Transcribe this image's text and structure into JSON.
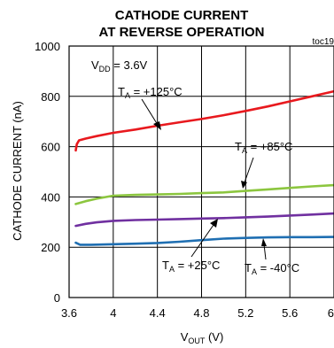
{
  "chart_data": {
    "type": "line",
    "title_line1": "CATHODE CURRENT",
    "title_line2": "AT REVERSE OPERATION",
    "figure_id": "toc19",
    "xlabel": {
      "main": "V",
      "sub": "OUT",
      "unit": " (V)"
    },
    "ylabel": "CATHODE CURRENT (nA)",
    "xlim": [
      3.6,
      6.0
    ],
    "ylim": [
      0,
      1000
    ],
    "x_ticks": [
      3.6,
      4.0,
      4.4,
      4.8,
      5.2,
      5.6,
      6.0
    ],
    "x_tick_labels": [
      "3.6",
      "4",
      "4.4",
      "4.8",
      "5.2",
      "5.6",
      "6"
    ],
    "y_ticks": [
      0,
      200,
      400,
      600,
      800,
      1000
    ],
    "y_tick_labels": [
      "0",
      "200",
      "400",
      "600",
      "800",
      "1000"
    ],
    "grid": true,
    "condition": {
      "main": "V",
      "sub": "DD",
      "rest": " = 3.6V"
    },
    "series": [
      {
        "label_main": "T",
        "label_sub": "A",
        "label_rest": " = +125°C",
        "color": "#e8191e",
        "x": [
          3.66,
          3.67,
          3.69,
          3.75,
          3.85,
          4.0,
          4.2,
          4.4,
          4.6,
          4.8,
          5.0,
          5.2,
          5.4,
          5.6,
          5.8,
          6.0
        ],
        "y": [
          585,
          610,
          625,
          632,
          642,
          655,
          668,
          683,
          697,
          710,
          725,
          742,
          760,
          780,
          800,
          820
        ]
      },
      {
        "label_main": "T",
        "label_sub": "A",
        "label_rest": " = +85°C",
        "color": "#8cc63f",
        "x": [
          3.66,
          3.75,
          3.85,
          4.0,
          4.2,
          4.4,
          4.6,
          4.8,
          5.0,
          5.2,
          5.4,
          5.6,
          5.8,
          6.0
        ],
        "y": [
          372,
          383,
          393,
          405,
          408,
          410,
          412,
          415,
          418,
          424,
          430,
          436,
          442,
          447
        ]
      },
      {
        "label_main": "T",
        "label_sub": "A",
        "label_rest": " = +25°C",
        "color": "#7030a0",
        "x": [
          3.66,
          3.75,
          3.85,
          4.0,
          4.2,
          4.4,
          4.6,
          4.8,
          5.0,
          5.2,
          5.4,
          5.6,
          5.8,
          6.0
        ],
        "y": [
          285,
          293,
          299,
          305,
          308,
          310,
          312,
          314,
          316,
          319,
          322,
          326,
          330,
          334
        ]
      },
      {
        "label_main": "T",
        "label_sub": "A",
        "label_rest": " = -40°C",
        "color": "#1f6fb2",
        "x": [
          3.66,
          3.7,
          3.8,
          4.0,
          4.2,
          4.4,
          4.6,
          4.8,
          5.0,
          5.2,
          5.4,
          5.6,
          5.8,
          6.0
        ],
        "y": [
          218,
          210,
          210,
          212,
          214,
          217,
          222,
          228,
          234,
          237,
          239,
          240,
          240,
          241
        ]
      }
    ]
  }
}
